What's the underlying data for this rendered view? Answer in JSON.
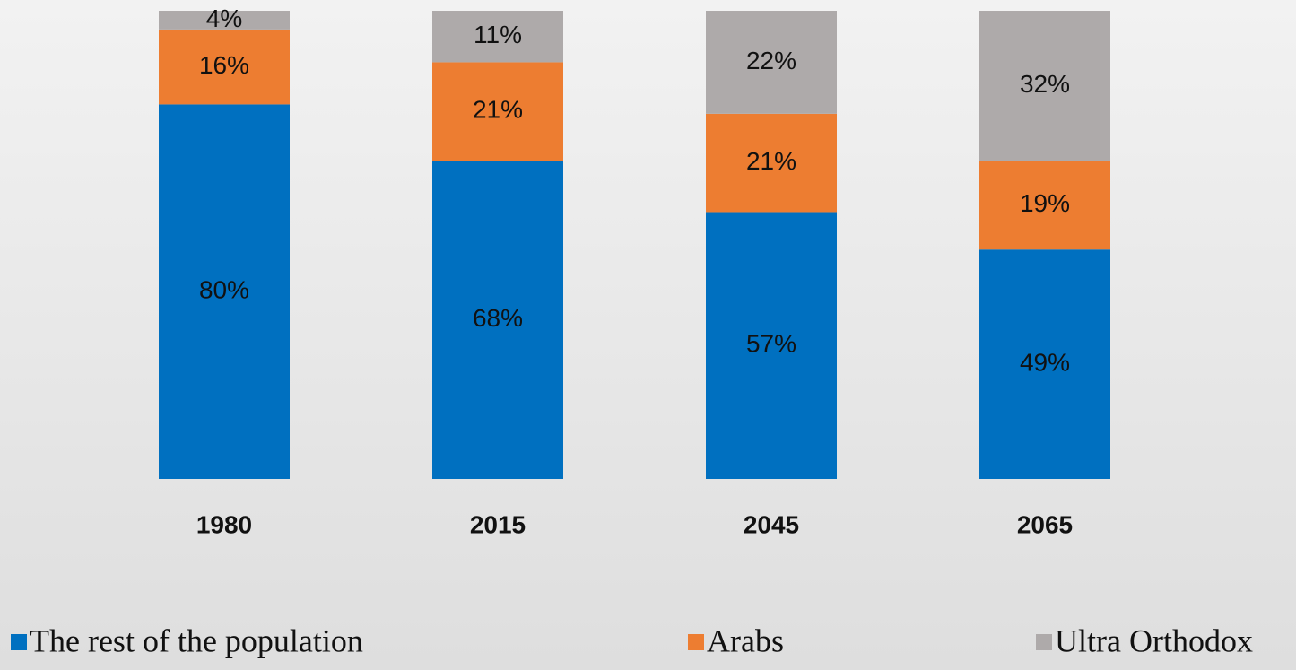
{
  "chart_data": {
    "type": "stacked_bar",
    "categories": [
      "1980",
      "2015",
      "2045",
      "2065"
    ],
    "series": [
      {
        "name": "The rest of the population",
        "color": "#0070c0",
        "values": [
          80,
          68,
          57,
          49
        ],
        "value_labels": [
          "80%",
          "68%",
          "57%",
          "49%"
        ]
      },
      {
        "name": "Arabs",
        "color": "#ed7d31",
        "values": [
          16,
          21,
          21,
          19
        ],
        "value_labels": [
          "16%",
          "21%",
          "21%",
          "19%"
        ]
      },
      {
        "name": "Ultra Orthodox",
        "color": "#aeaaaa",
        "values": [
          4,
          11,
          22,
          32
        ],
        "value_labels": [
          "4%",
          "11%",
          "22%",
          "32%"
        ]
      }
    ],
    "ylim": [
      0,
      100
    ],
    "legend": "bottom"
  }
}
